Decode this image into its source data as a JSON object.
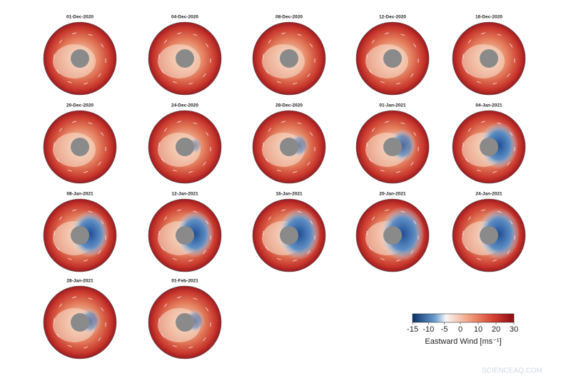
{
  "panels": [
    {
      "title": "01-Dec-2020"
    },
    {
      "title": "04-Dec-2020"
    },
    {
      "title": "08-Dec-2020"
    },
    {
      "title": "12-Dec-2020"
    },
    {
      "title": "16-Dec-2020"
    },
    {
      "title": "20-Dec-2020"
    },
    {
      "title": "24-Dec-2020"
    },
    {
      "title": "28-Dec-2020"
    },
    {
      "title": "01-Jan-2021"
    },
    {
      "title": "04-Jan-2021"
    },
    {
      "title": "08-Jan-2021"
    },
    {
      "title": "12-Jan-2021"
    },
    {
      "title": "16-Jan-2021"
    },
    {
      "title": "20-Jan-2021"
    },
    {
      "title": "24-Jan-2021"
    },
    {
      "title": "28-Jan-2021"
    },
    {
      "title": "01-Feb-2021"
    }
  ],
  "colorbar": {
    "lim": [
      -15,
      30
    ],
    "ticks": [
      -15,
      -10,
      -5,
      0,
      10,
      20,
      30
    ],
    "label": "Eastward Wind [ms⁻¹]"
  },
  "watermark": "SCIENCEAQ.COM"
}
